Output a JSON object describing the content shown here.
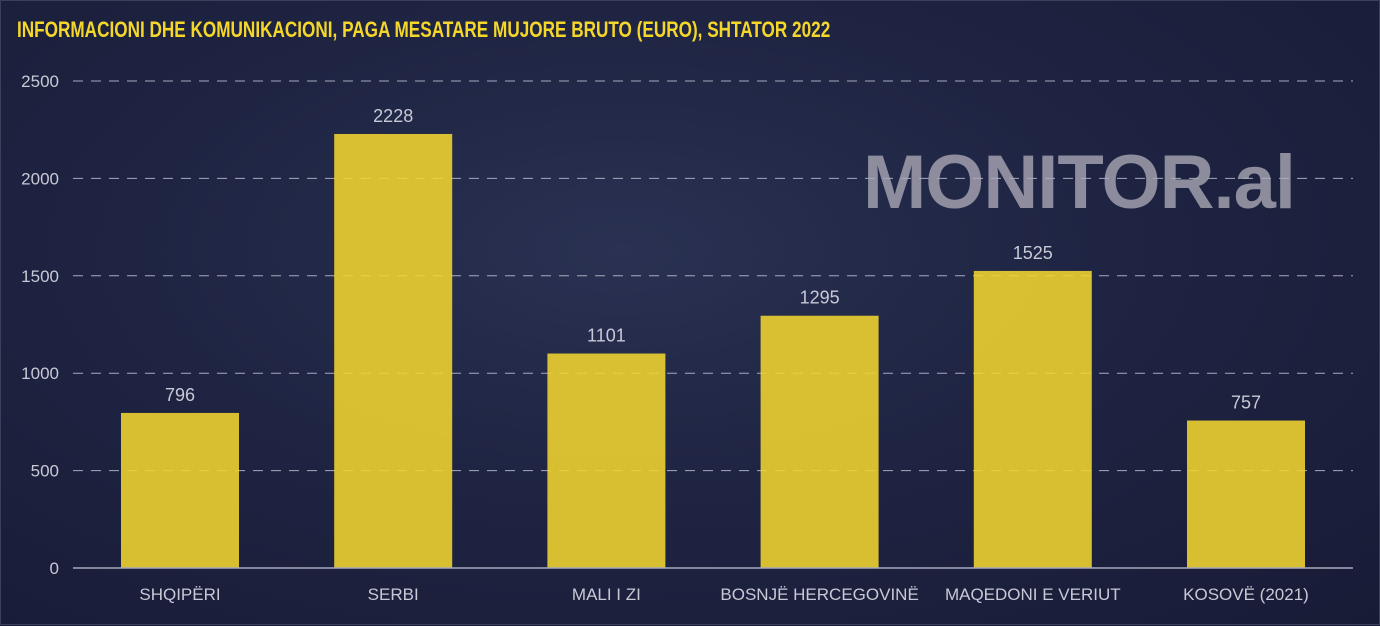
{
  "chart_data": {
    "type": "bar",
    "title": "INFORMACIONI DHE KOMUNIKACIONI, PAGA MESATARE MUJORE BRUTO (EURO), SHTATOR 2022",
    "categories": [
      "SHQIPËRI",
      "SERBI",
      "MALI I ZI",
      "BOSNJË HERCEGOVINË",
      "MAQEDONI E VERIUT",
      "KOSOVË (2021)"
    ],
    "values": [
      796,
      2228,
      1101,
      1295,
      1525,
      757
    ],
    "data_labels": [
      "796",
      "2228",
      "1101",
      "1295",
      "1525",
      "757"
    ],
    "xlabel": "",
    "ylabel": "",
    "ylim": [
      0,
      2500
    ],
    "yticks": [
      0,
      500,
      1000,
      1500,
      2000,
      2500
    ],
    "ytick_labels": [
      "0",
      "500",
      "1000",
      "1500",
      "2000",
      "2500"
    ],
    "grid": true,
    "bar_color": "#f2d530",
    "title_color": "#f5d72a"
  },
  "watermark": "MONITOR.al"
}
